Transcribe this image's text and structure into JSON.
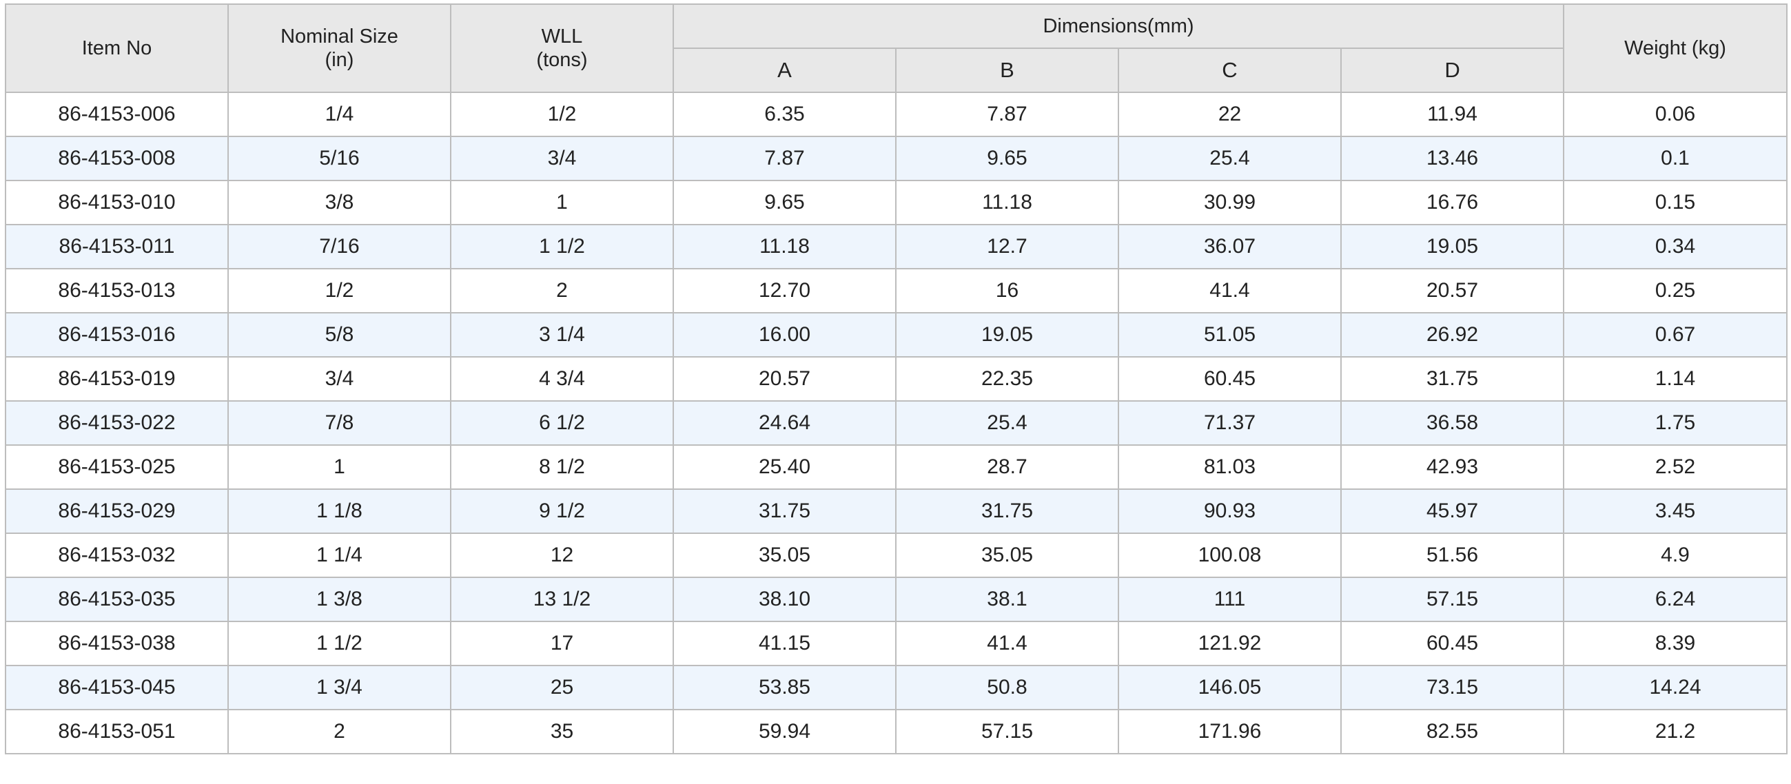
{
  "table": {
    "headers": {
      "item_no": "Item No",
      "nominal_size": "Nominal Size",
      "nominal_size_unit": "(in)",
      "wll": "WLL",
      "wll_unit": "(tons)",
      "dimensions": "Dimensions(mm)",
      "dim_a": "A",
      "dim_b": "B",
      "dim_c": "C",
      "dim_d": "D",
      "weight": "Weight (kg)"
    },
    "rows": [
      [
        "86-4153-006",
        "1/4",
        "1/2",
        "6.35",
        "7.87",
        "22",
        "11.94",
        "0.06"
      ],
      [
        "86-4153-008",
        "5/16",
        "3/4",
        "7.87",
        "9.65",
        "25.4",
        "13.46",
        "0.1"
      ],
      [
        "86-4153-010",
        "3/8",
        "1",
        "9.65",
        "11.18",
        "30.99",
        "16.76",
        "0.15"
      ],
      [
        "86-4153-011",
        "7/16",
        "1 1/2",
        "11.18",
        "12.7",
        "36.07",
        "19.05",
        "0.34"
      ],
      [
        "86-4153-013",
        "1/2",
        "2",
        "12.70",
        "16",
        "41.4",
        "20.57",
        "0.25"
      ],
      [
        "86-4153-016",
        "5/8",
        "3 1/4",
        "16.00",
        "19.05",
        "51.05",
        "26.92",
        "0.67"
      ],
      [
        "86-4153-019",
        "3/4",
        "4 3/4",
        "20.57",
        "22.35",
        "60.45",
        "31.75",
        "1.14"
      ],
      [
        "86-4153-022",
        "7/8",
        "6 1/2",
        "24.64",
        "25.4",
        "71.37",
        "36.58",
        "1.75"
      ],
      [
        "86-4153-025",
        "1",
        "8 1/2",
        "25.40",
        "28.7",
        "81.03",
        "42.93",
        "2.52"
      ],
      [
        "86-4153-029",
        "1 1/8",
        "9 1/2",
        "31.75",
        "31.75",
        "90.93",
        "45.97",
        "3.45"
      ],
      [
        "86-4153-032",
        "1 1/4",
        "12",
        "35.05",
        "35.05",
        "100.08",
        "51.56",
        "4.9"
      ],
      [
        "86-4153-035",
        "1 3/8",
        "13 1/2",
        "38.10",
        "38.1",
        "111",
        "57.15",
        "6.24"
      ],
      [
        "86-4153-038",
        "1 1/2",
        "17",
        "41.15",
        "41.4",
        "121.92",
        "60.45",
        "8.39"
      ],
      [
        "86-4153-045",
        "1 3/4",
        "25",
        "53.85",
        "50.8",
        "146.05",
        "73.15",
        "14.24"
      ],
      [
        "86-4153-051",
        "2",
        "35",
        "59.94",
        "57.15",
        "171.96",
        "82.55",
        "21.2"
      ]
    ]
  },
  "colors": {
    "header_bg": "#e8e8e8",
    "row_alt_bg": "#eef5fd",
    "border": "#bdbdbd"
  }
}
